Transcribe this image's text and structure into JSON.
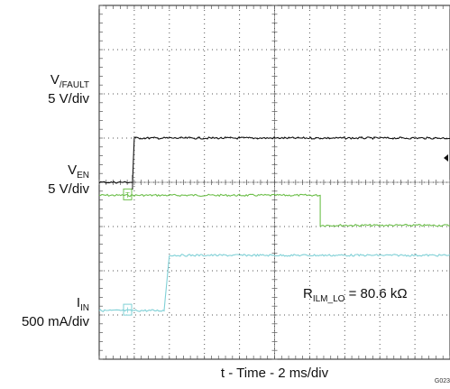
{
  "chart_data": {
    "type": "line",
    "title": "",
    "xlabel": "t - Time - 2 ms/div",
    "x_unit": "ms",
    "x_divisions": 10,
    "y_divisions": 8,
    "grid": true,
    "figure_id": "G023",
    "annotation": {
      "text": "R",
      "sub": "ILM_LO",
      "rest": " = 80.6 kΩ"
    },
    "series": [
      {
        "name": "V/FAULT",
        "label_main": "V",
        "label_sub": "/FAULT",
        "scale": "5 V/div",
        "color": "#6dbf4b",
        "ref_marker": "T",
        "x": [
          0,
          4,
          6.3,
          6.3,
          10
        ],
        "y": [
          0.56,
          0.56,
          0.56,
          -0.12,
          -0.12
        ],
        "unit": "div"
      },
      {
        "name": "VEN",
        "label_main": "V",
        "label_sub": "EN",
        "scale": "5 V/div",
        "color": "#111111",
        "ref_marker": "",
        "x": [
          0,
          0.95,
          1.0,
          10
        ],
        "y": [
          0,
          0,
          1.0,
          1.0
        ],
        "unit": "div"
      },
      {
        "name": "IN",
        "label_main": "I",
        "label_sub": "IN",
        "scale": "500 mA/div",
        "color": "#7fd0d6",
        "ref_marker": "I",
        "x": [
          0,
          1.85,
          2.0,
          10
        ],
        "y": [
          0,
          0,
          1.25,
          1.25
        ],
        "unit": "div"
      }
    ]
  }
}
